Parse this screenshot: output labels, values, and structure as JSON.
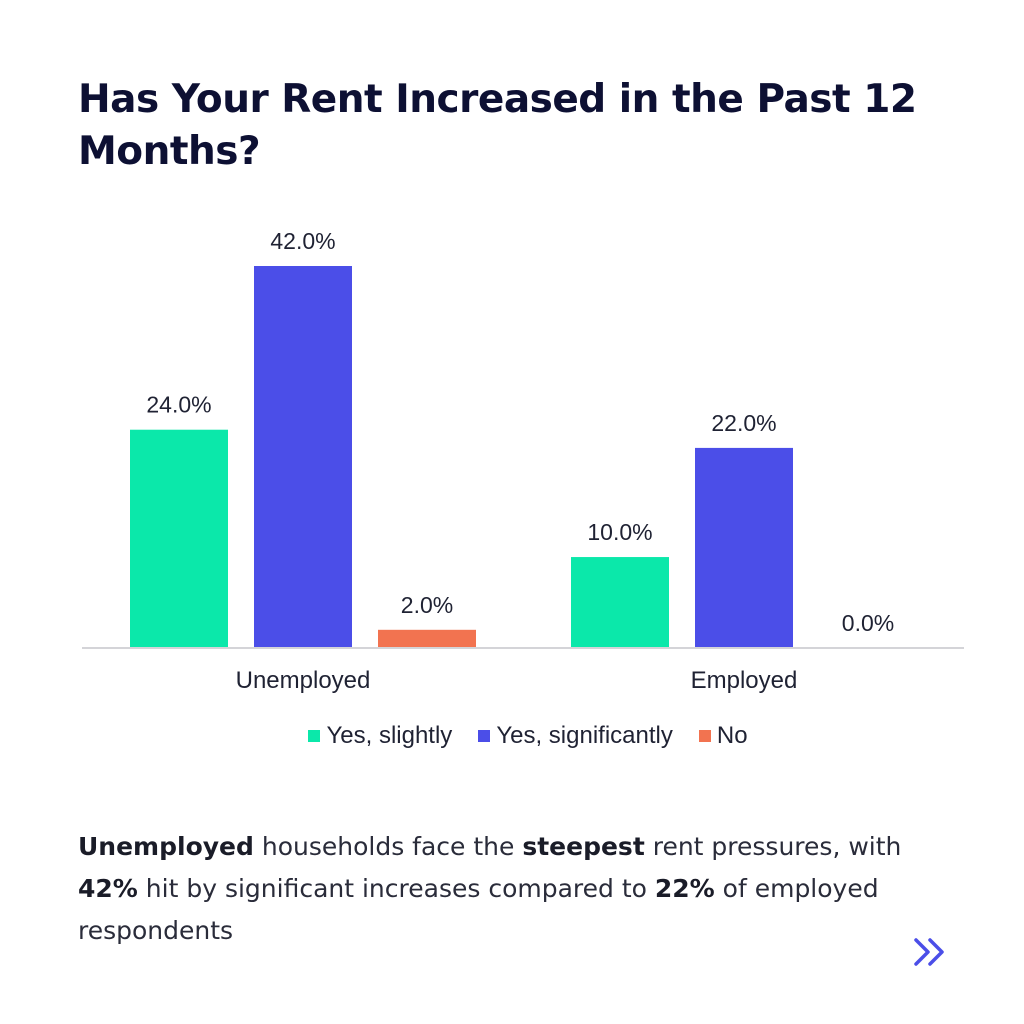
{
  "chart_data": {
    "type": "bar",
    "title": "Has Your Rent Increased in the Past 12 Months?",
    "categories": [
      "Unemployed",
      "Employed"
    ],
    "series": [
      {
        "name": "Yes, slightly",
        "color": "#0be8aa",
        "values": [
          24.0,
          10.0
        ],
        "labels": [
          "24.0%",
          "10.0%"
        ]
      },
      {
        "name": "Yes, significantly",
        "color": "#4b4ee8",
        "values": [
          42.0,
          22.0
        ],
        "labels": [
          "42.0%",
          "22.0%"
        ]
      },
      {
        "name": "No",
        "color": "#f27350",
        "values": [
          2.0,
          0.0
        ],
        "labels": [
          "2.0%",
          "0.0%"
        ]
      }
    ],
    "ylim": [
      0,
      42
    ],
    "xlabel": "",
    "ylabel": "",
    "grid": false,
    "legend_position": "bottom"
  },
  "caption": {
    "part1_bold": "Unemployed",
    "part2": " households face the ",
    "part3_bold": "steepest",
    "part4": " rent pressures, with ",
    "part5_bold": "42%",
    "part6": " hit by significant increases compared to ",
    "part7_bold": "22%",
    "part8": " of employed respondents"
  },
  "nav": {
    "next_icon": "double-chevron-right-icon",
    "accent": "#4b4ee8"
  }
}
